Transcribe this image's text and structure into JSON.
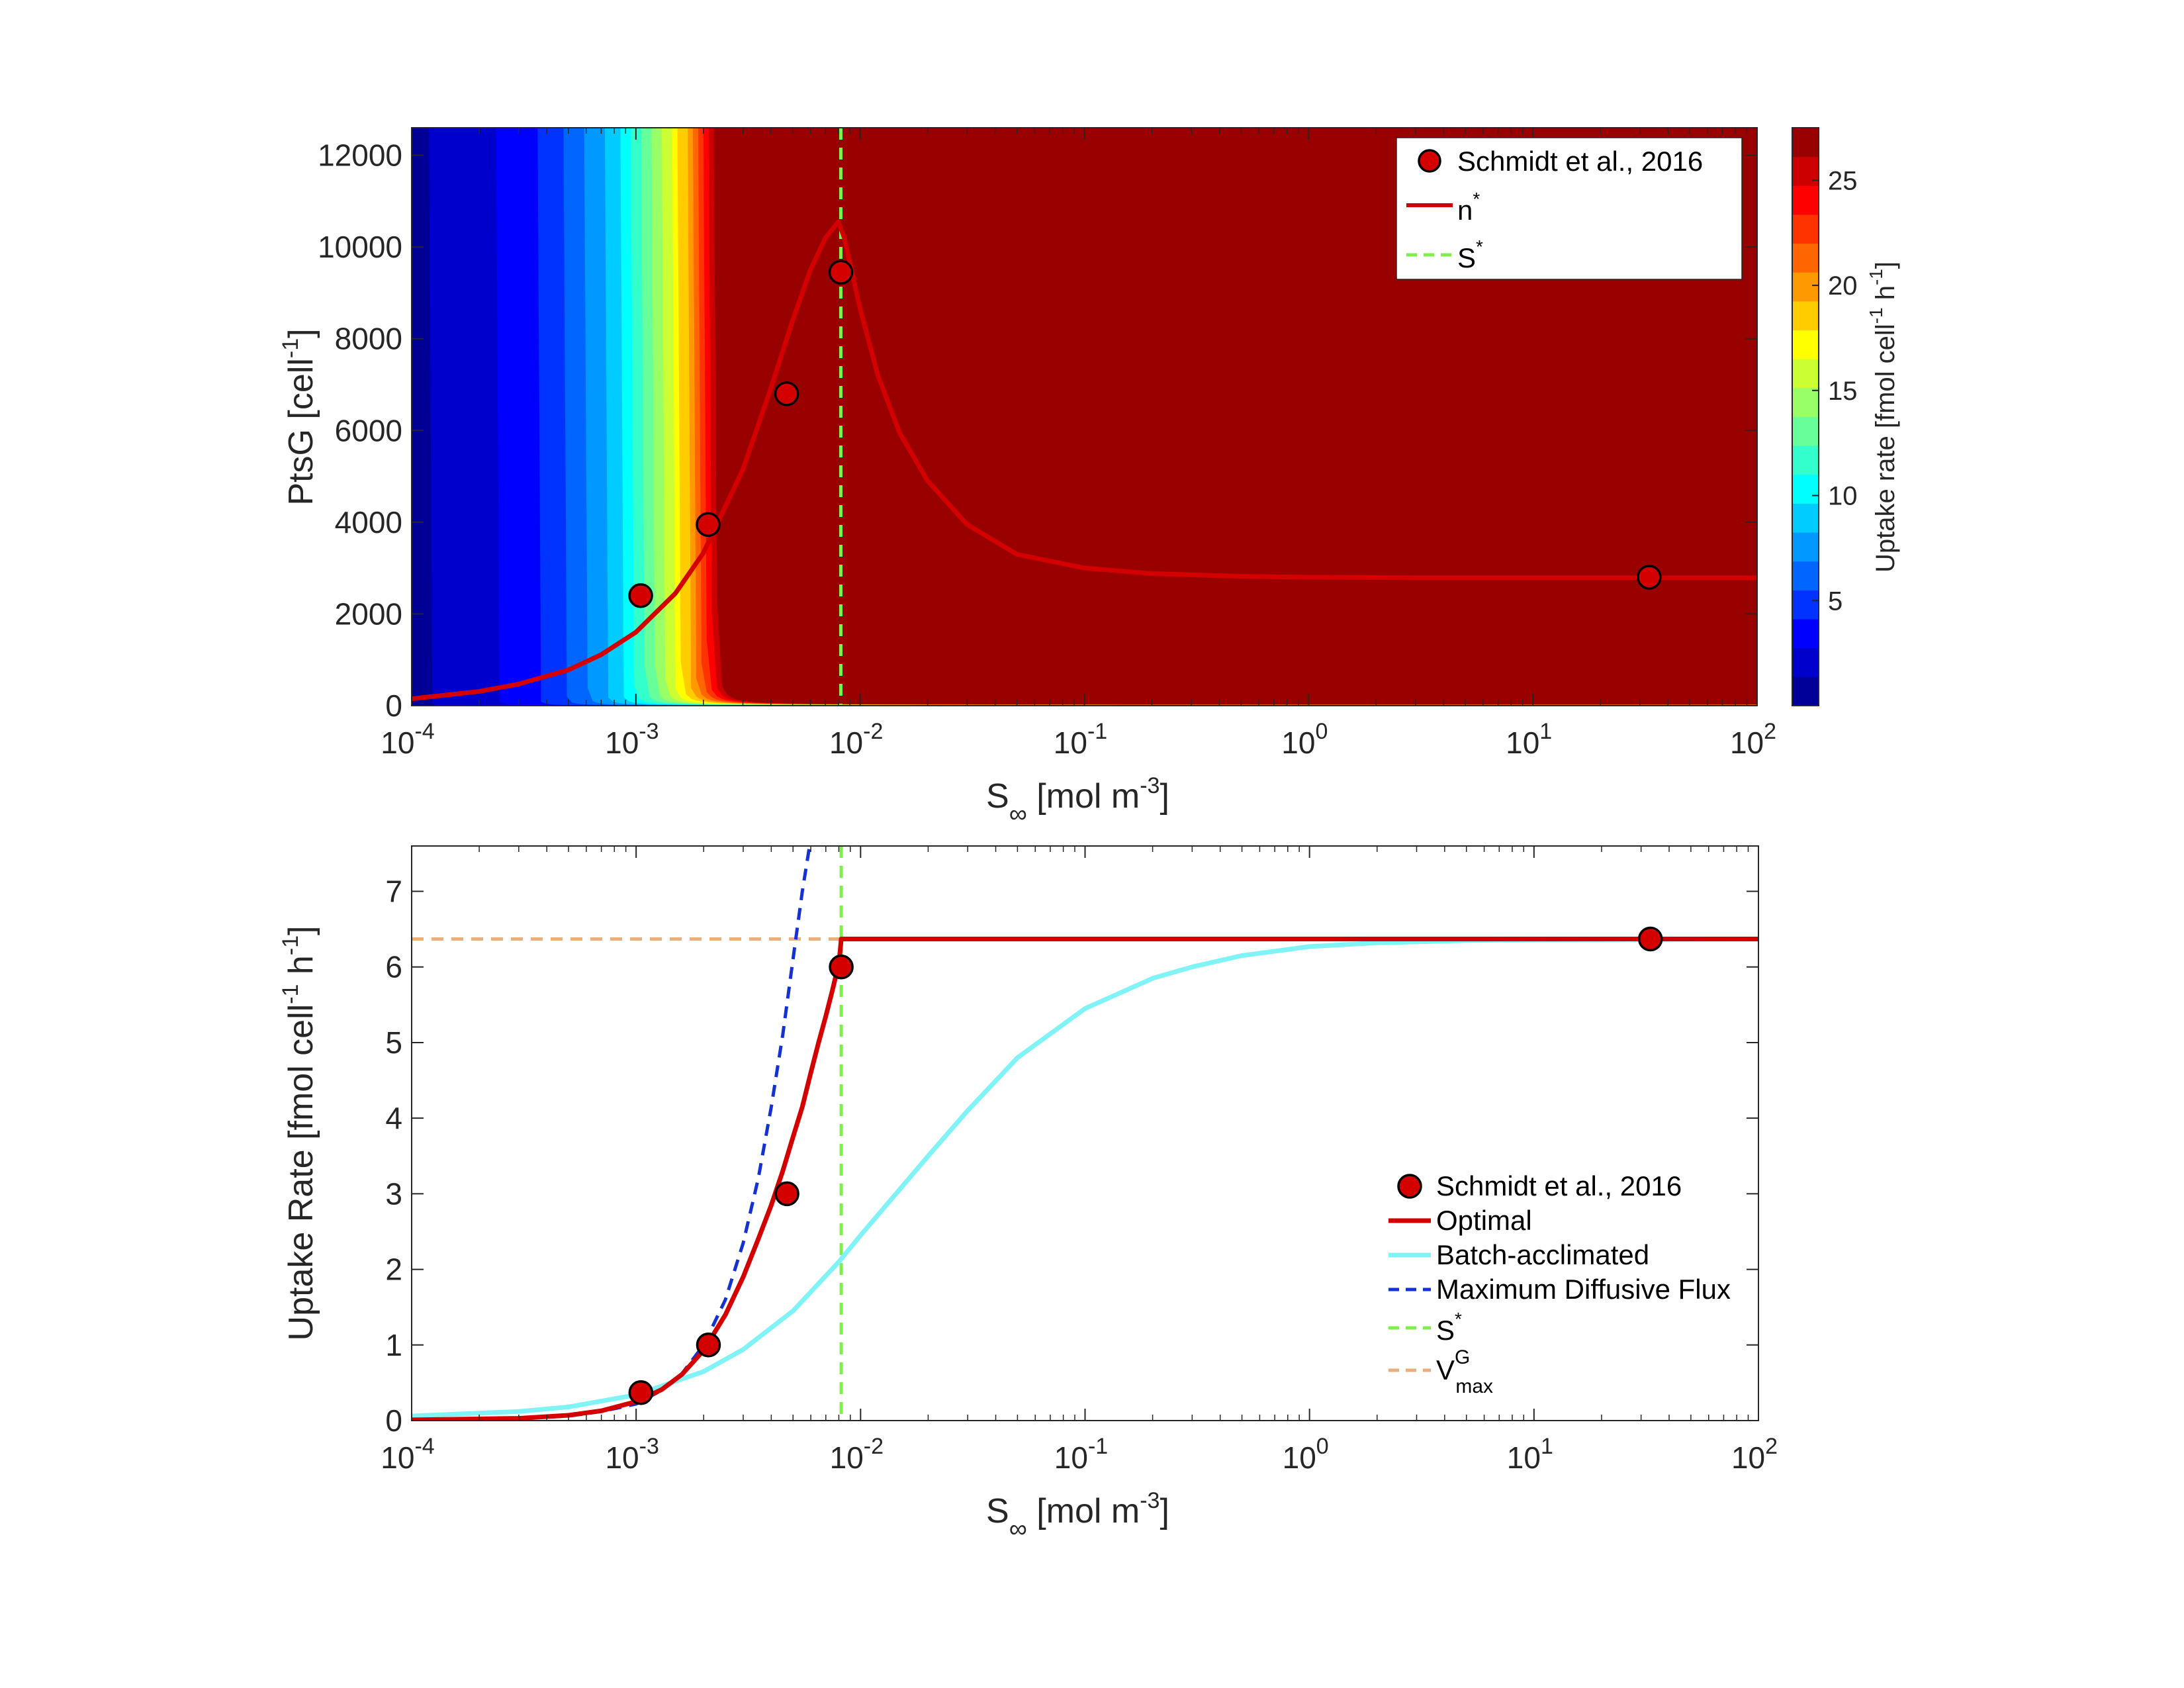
{
  "colors": {
    "data_marker": "#d40000",
    "optimal_line": "#d40000",
    "batch_line": "#7ff3f5",
    "diffusive_line": "#1431d6",
    "s_star_line": "#7ef04a",
    "vmax_line": "#e9b07e"
  },
  "chart_data": [
    {
      "type": "heatmap",
      "xlabel_main": "S",
      "xlabel_sub": "∞",
      "xlabel_unit": " [mol m",
      "xlabel_sup": "-3",
      "xlabel_end": "]",
      "ylabel_main": "PtsG [cell",
      "ylabel_sup": "-1",
      "ylabel_end": "]",
      "x_scale": "log",
      "xlim": [
        0.0001,
        100
      ],
      "ylim": [
        0,
        12600
      ],
      "x_ticks": [
        {
          "value": 0.0001,
          "base": "10",
          "exp": "-4"
        },
        {
          "value": 0.001,
          "base": "10",
          "exp": "-3"
        },
        {
          "value": 0.01,
          "base": "10",
          "exp": "-2"
        },
        {
          "value": 0.1,
          "base": "10",
          "exp": "-1"
        },
        {
          "value": 1,
          "base": "10",
          "exp": "0"
        },
        {
          "value": 10,
          "base": "10",
          "exp": "1"
        },
        {
          "value": 100,
          "base": "10",
          "exp": "2"
        }
      ],
      "y_ticks": [
        0,
        2000,
        4000,
        6000,
        8000,
        10000,
        12000
      ],
      "colorbar": {
        "label_main": "Uptake rate [fmol cell",
        "label_sup1": "-1",
        "label_mid": " h",
        "label_sup2": "-1",
        "label_end": "]",
        "range": [
          0,
          27.5
        ],
        "ticks": [
          5,
          10,
          15,
          20,
          25
        ],
        "colormap": "jet"
      },
      "scatter": {
        "name": "Schmidt et al., 2016",
        "x": [
          0.00105,
          0.0021,
          0.0047,
          0.0082,
          33
        ],
        "y": [
          2400,
          3950,
          6800,
          9450,
          2800
        ]
      },
      "optimal_curve": {
        "name": "n",
        "name_sup": "*",
        "x": [
          0.0001,
          0.0002,
          0.0003,
          0.0005,
          0.0007,
          0.001,
          0.0015,
          0.002,
          0.003,
          0.004,
          0.005,
          0.006,
          0.007,
          0.008,
          0.0085,
          0.009,
          0.01,
          0.012,
          0.015,
          0.02,
          0.03,
          0.05,
          0.1,
          0.2,
          0.5,
          1,
          3,
          10,
          100
        ],
        "y": [
          150,
          310,
          470,
          780,
          1110,
          1600,
          2450,
          3330,
          5150,
          6920,
          8400,
          9500,
          10200,
          10550,
          10200,
          9650,
          8650,
          7200,
          5950,
          4900,
          3950,
          3300,
          3000,
          2880,
          2820,
          2800,
          2790,
          2790,
          2790
        ]
      },
      "s_star": {
        "name": "S",
        "name_sup": "*",
        "x": 0.0082
      },
      "legend": {
        "position": "top-right"
      }
    },
    {
      "type": "line",
      "xlabel_main": "S",
      "xlabel_sub": "∞",
      "xlabel_unit": " [mol m",
      "xlabel_sup": "-3",
      "xlabel_end": "]",
      "ylabel_main": "Uptake Rate [fmol cell",
      "ylabel_sup1": "-1",
      "ylabel_mid": " h",
      "ylabel_sup2": "-1",
      "ylabel_end": "]",
      "x_scale": "log",
      "xlim": [
        0.0001,
        100
      ],
      "ylim": [
        0,
        7.6
      ],
      "x_ticks": [
        {
          "value": 0.0001,
          "base": "10",
          "exp": "-4"
        },
        {
          "value": 0.001,
          "base": "10",
          "exp": "-3"
        },
        {
          "value": 0.01,
          "base": "10",
          "exp": "-2"
        },
        {
          "value": 0.1,
          "base": "10",
          "exp": "-1"
        },
        {
          "value": 1,
          "base": "10",
          "exp": "0"
        },
        {
          "value": 10,
          "base": "10",
          "exp": "1"
        },
        {
          "value": 100,
          "base": "10",
          "exp": "2"
        }
      ],
      "y_ticks": [
        0,
        1,
        2,
        3,
        4,
        5,
        6,
        7
      ],
      "scatter": {
        "name": "Schmidt et al., 2016",
        "x": [
          0.00105,
          0.0021,
          0.0047,
          0.0082,
          33
        ],
        "y": [
          0.37,
          1.0,
          3.0,
          6.0,
          6.37
        ]
      },
      "series": [
        {
          "name": "Optimal",
          "style": "solid",
          "x": [
            0.0001,
            0.0003,
            0.0005,
            0.0007,
            0.001,
            0.0013,
            0.0016,
            0.002,
            0.0025,
            0.003,
            0.0035,
            0.004,
            0.0045,
            0.005,
            0.0055,
            0.006,
            0.0065,
            0.007,
            0.0075,
            0.008,
            0.0081,
            0.0082,
            0.01,
            0.1,
            1,
            10,
            100
          ],
          "y": [
            0.01,
            0.03,
            0.07,
            0.13,
            0.25,
            0.41,
            0.61,
            0.93,
            1.4,
            1.9,
            2.4,
            2.85,
            3.3,
            3.75,
            4.15,
            4.6,
            5.0,
            5.35,
            5.7,
            6.05,
            6.2,
            6.37,
            6.37,
            6.37,
            6.37,
            6.37,
            6.37
          ]
        },
        {
          "name": "Batch-acclimated",
          "style": "solid",
          "x": [
            0.0001,
            0.0003,
            0.0005,
            0.001,
            0.002,
            0.003,
            0.005,
            0.008,
            0.01,
            0.02,
            0.03,
            0.05,
            0.1,
            0.2,
            0.3,
            0.5,
            1,
            2,
            5,
            10,
            100
          ],
          "y": [
            0.06,
            0.12,
            0.18,
            0.34,
            0.65,
            0.94,
            1.45,
            2.1,
            2.45,
            3.5,
            4.1,
            4.8,
            5.45,
            5.85,
            6.0,
            6.15,
            6.27,
            6.32,
            6.35,
            6.36,
            6.37
          ]
        },
        {
          "name": "Maximum Diffusive Flux",
          "style": "dashed",
          "x": [
            0.0001,
            0.0003,
            0.0005,
            0.0007,
            0.001,
            0.0013,
            0.0016,
            0.002,
            0.0025,
            0.003,
            0.0035,
            0.004,
            0.0045,
            0.005,
            0.0055,
            0.006
          ],
          "y": [
            0.0,
            0.03,
            0.06,
            0.12,
            0.22,
            0.4,
            0.62,
            1.0,
            1.6,
            2.35,
            3.2,
            4.15,
            5.1,
            6.1,
            7.0,
            7.7
          ]
        }
      ],
      "s_star": {
        "name": "S",
        "name_sup": "*",
        "x": 0.0082
      },
      "vmax": {
        "name": "V",
        "name_sup": "G",
        "name_sub": "max",
        "y": 6.37
      },
      "legend": {
        "position": "bottom-right"
      }
    }
  ]
}
